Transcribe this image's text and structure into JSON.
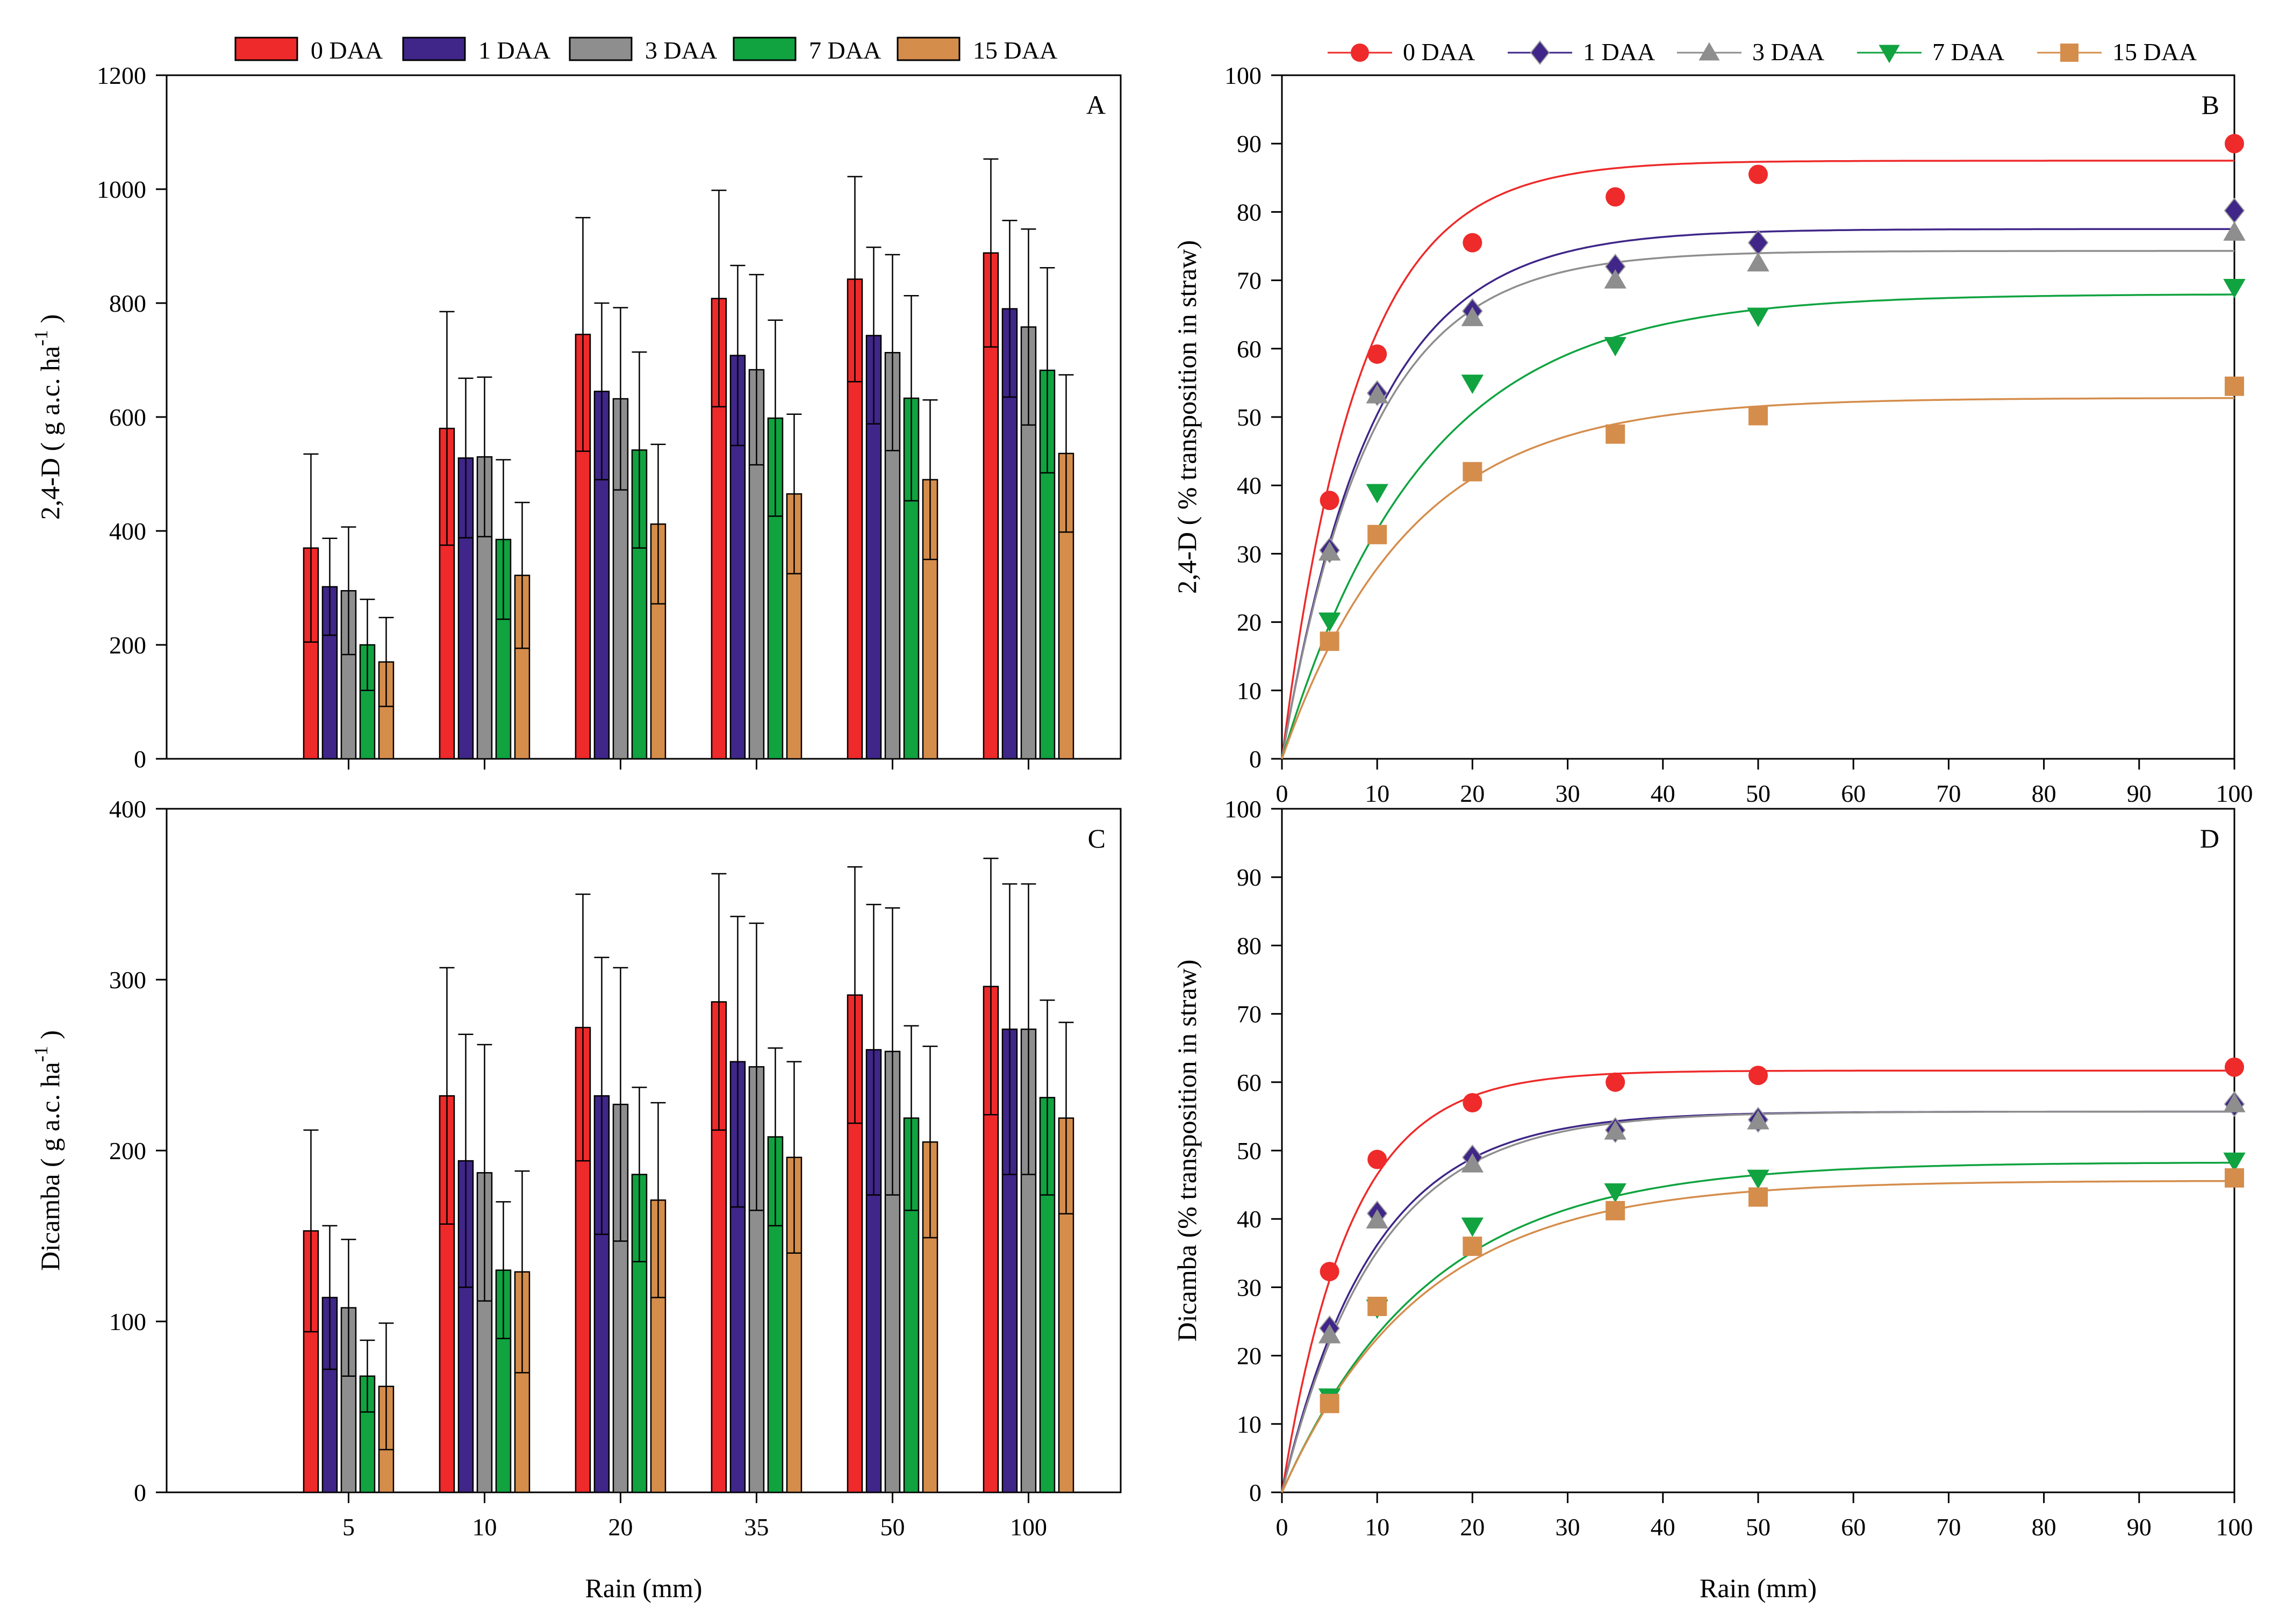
{
  "colors": {
    "0 DAA": "#ee2a2a",
    "1 DAA": "#3f2688",
    "3 DAA": "#8e8e8e",
    "7 DAA": "#10a340",
    "15 DAA": "#d58d4c"
  },
  "legend": {
    "series": [
      "0 DAA",
      "1 DAA",
      "3 DAA",
      "7 DAA",
      "15 DAA"
    ],
    "marker_icons": [
      "circle-icon",
      "diamond-icon",
      "triangle-up-icon",
      "triangle-down-icon",
      "square-icon"
    ]
  },
  "x_common_label": "Rain (mm)",
  "chart_data": [
    {
      "id": "A",
      "type": "bar",
      "panel_label": "A",
      "ylabel": "2,4-D ( g a.c. ha-1 )",
      "ylabel_main": "2,4-D ( g a.c. ha",
      "ylabel_sup": "-1",
      "ylabel_end": " )",
      "xlabel": "",
      "ylim": [
        0,
        1200
      ],
      "yticks": [
        0,
        200,
        400,
        600,
        800,
        1000,
        1200
      ],
      "categories": [
        "5",
        "10",
        "20",
        "35",
        "50",
        "100"
      ],
      "series": [
        {
          "name": "0 DAA",
          "values": [
            370,
            580,
            745,
            808,
            842,
            888
          ],
          "err": [
            165,
            205,
            205,
            190,
            180,
            165
          ]
        },
        {
          "name": "1 DAA",
          "values": [
            302,
            528,
            645,
            708,
            743,
            790
          ],
          "err": [
            85,
            140,
            155,
            158,
            155,
            155
          ]
        },
        {
          "name": "3 DAA",
          "values": [
            295,
            530,
            632,
            683,
            713,
            758
          ],
          "err": [
            112,
            140,
            160,
            167,
            172,
            172
          ]
        },
        {
          "name": "7 DAA",
          "values": [
            200,
            385,
            542,
            598,
            633,
            682
          ],
          "err": [
            80,
            140,
            172,
            172,
            180,
            180
          ]
        },
        {
          "name": "15 DAA",
          "values": [
            170,
            322,
            412,
            465,
            490,
            536
          ],
          "err": [
            78,
            128,
            140,
            140,
            140,
            138
          ]
        }
      ]
    },
    {
      "id": "B",
      "type": "line",
      "panel_label": "B",
      "ylabel": "2,4-D ( % transposition in straw)",
      "xlabel": "Rain (mm)",
      "xlim": [
        0,
        100
      ],
      "ylim": [
        0,
        100
      ],
      "xticks": [
        0,
        10,
        20,
        30,
        40,
        50,
        60,
        70,
        80,
        90,
        100
      ],
      "yticks": [
        0,
        10,
        20,
        30,
        40,
        50,
        60,
        70,
        80,
        90,
        100
      ],
      "x": [
        5,
        10,
        20,
        35,
        50,
        100
      ],
      "series": [
        {
          "name": "0 DAA",
          "values": [
            37.8,
            59.2,
            75.5,
            82.2,
            85.5,
            90.0
          ],
          "fit_max": 87.5,
          "fit_k": 0.125
        },
        {
          "name": "1 DAA",
          "values": [
            30.5,
            53.5,
            65.5,
            72.0,
            75.5,
            80.2
          ],
          "fit_max": 77.5,
          "fit_k": 0.105
        },
        {
          "name": "3 DAA",
          "values": [
            30.2,
            53.2,
            64.5,
            70.0,
            72.5,
            77.0
          ],
          "fit_max": 74.3,
          "fit_k": 0.108
        },
        {
          "name": "7 DAA",
          "values": [
            20.2,
            39.0,
            55.0,
            60.5,
            64.8,
            69.0
          ],
          "fit_max": 68.0,
          "fit_k": 0.068
        },
        {
          "name": "15 DAA",
          "values": [
            17.2,
            32.8,
            42.0,
            47.5,
            50.2,
            54.5
          ],
          "fit_max": 52.8,
          "fit_k": 0.075
        }
      ]
    },
    {
      "id": "C",
      "type": "bar",
      "panel_label": "C",
      "ylabel": "Dicamba ( g a.c. ha-1 )",
      "ylabel_main": "Dicamba ( g a.c. ha",
      "ylabel_sup": "-1",
      "ylabel_end": " )",
      "xlabel": "Rain (mm)",
      "ylim": [
        0,
        400
      ],
      "yticks": [
        0,
        100,
        200,
        300,
        400
      ],
      "categories": [
        "5",
        "10",
        "20",
        "35",
        "50",
        "100"
      ],
      "series": [
        {
          "name": "0 DAA",
          "values": [
            153,
            232,
            272,
            287,
            291,
            296
          ],
          "err": [
            59,
            75,
            78,
            75,
            75,
            75
          ]
        },
        {
          "name": "1 DAA",
          "values": [
            114,
            194,
            232,
            252,
            259,
            271
          ],
          "err": [
            42,
            74,
            81,
            85,
            85,
            85
          ]
        },
        {
          "name": "3 DAA",
          "values": [
            108,
            187,
            227,
            249,
            258,
            271
          ],
          "err": [
            40,
            75,
            80,
            84,
            84,
            85
          ]
        },
        {
          "name": "7 DAA",
          "values": [
            68,
            130,
            186,
            208,
            219,
            231
          ],
          "err": [
            21,
            40,
            51,
            52,
            54,
            57
          ]
        },
        {
          "name": "15 DAA",
          "values": [
            62,
            129,
            171,
            196,
            205,
            219
          ],
          "err": [
            37,
            59,
            57,
            56,
            56,
            56
          ]
        }
      ]
    },
    {
      "id": "D",
      "type": "line",
      "panel_label": "D",
      "ylabel": "Dicamba (% transposition in straw)",
      "xlabel": "Rain (mm)",
      "xlim": [
        0,
        100
      ],
      "ylim": [
        0,
        100
      ],
      "xticks": [
        0,
        10,
        20,
        30,
        40,
        50,
        60,
        70,
        80,
        90,
        100
      ],
      "yticks": [
        0,
        10,
        20,
        30,
        40,
        50,
        60,
        70,
        80,
        90,
        100
      ],
      "x": [
        5,
        10,
        20,
        35,
        50,
        100
      ],
      "series": [
        {
          "name": "0 DAA",
          "values": [
            32.3,
            48.7,
            57.0,
            60.0,
            61.0,
            62.2
          ],
          "fit_max": 61.7,
          "fit_k": 0.14
        },
        {
          "name": "1 DAA",
          "values": [
            24.0,
            40.8,
            49.0,
            53.0,
            54.5,
            56.8
          ],
          "fit_max": 55.7,
          "fit_k": 0.105
        },
        {
          "name": "3 DAA",
          "values": [
            23.0,
            39.8,
            48.0,
            52.8,
            54.3,
            56.8
          ],
          "fit_max": 55.7,
          "fit_k": 0.1
        },
        {
          "name": "7 DAA",
          "values": [
            14.0,
            27.0,
            39.0,
            44.0,
            46.0,
            48.5
          ],
          "fit_max": 48.3,
          "fit_k": 0.065
        },
        {
          "name": "15 DAA",
          "values": [
            13.0,
            27.2,
            36.0,
            41.2,
            43.2,
            46.0
          ],
          "fit_max": 45.6,
          "fit_k": 0.068
        }
      ]
    }
  ]
}
